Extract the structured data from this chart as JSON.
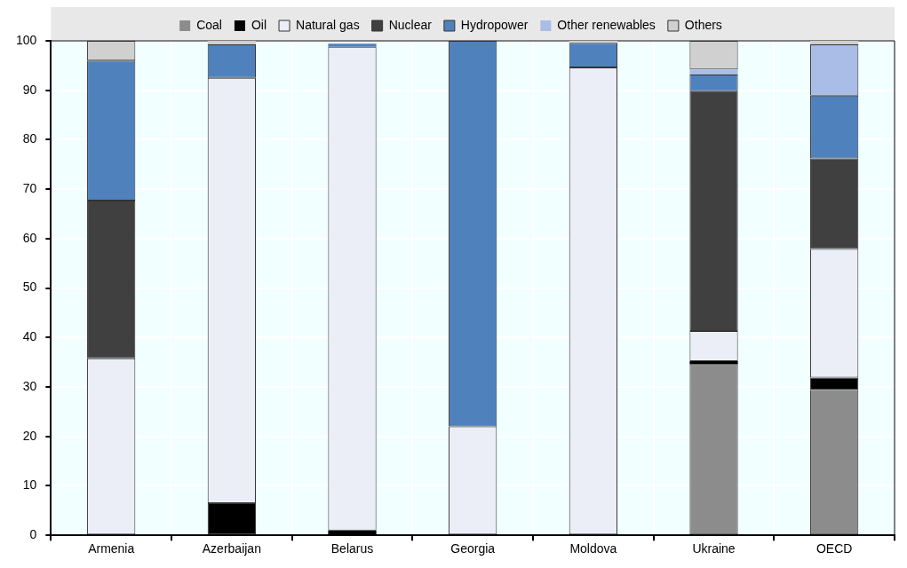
{
  "chart_data": {
    "type": "bar",
    "stacked": true,
    "categories": [
      "Armenia",
      "Azerbaijan",
      "Belarus",
      "Georgia",
      "Moldova",
      "Ukraine",
      "OECD"
    ],
    "series": [
      {
        "name": "Coal",
        "color": "#8c8c8c",
        "values": [
          0,
          0,
          0,
          0,
          0,
          34.6,
          29.4
        ]
      },
      {
        "name": "Oil",
        "color": "#000000",
        "values": [
          0,
          6.5,
          1,
          0,
          0,
          0.6,
          2.5
        ]
      },
      {
        "name": "Natural gas",
        "color": "#eceef7",
        "values": [
          35.8,
          86,
          97.8,
          22,
          94.6,
          6.1,
          26
        ]
      },
      {
        "name": "Nuclear",
        "color": "#404040",
        "values": [
          31.9,
          0,
          0,
          0,
          0,
          48.5,
          18.3
        ]
      },
      {
        "name": "Hydropower",
        "color": "#4f81bd",
        "values": [
          28.3,
          6.8,
          0.6,
          78,
          5,
          3.4,
          12.7
        ]
      },
      {
        "name": "Other renewables",
        "color": "#a9bde6",
        "values": [
          0,
          0,
          null,
          0,
          0,
          1,
          10.4
        ]
      },
      {
        "name": "Others",
        "color": "#d0d0d0",
        "values": [
          4,
          0.7,
          null,
          0,
          0.4,
          5.8,
          0.7
        ]
      }
    ],
    "ylim": [
      0,
      100
    ],
    "yticks": [
      0,
      10,
      20,
      30,
      40,
      50,
      60,
      70,
      80,
      90,
      100
    ],
    "grid": true,
    "legend": "top"
  }
}
